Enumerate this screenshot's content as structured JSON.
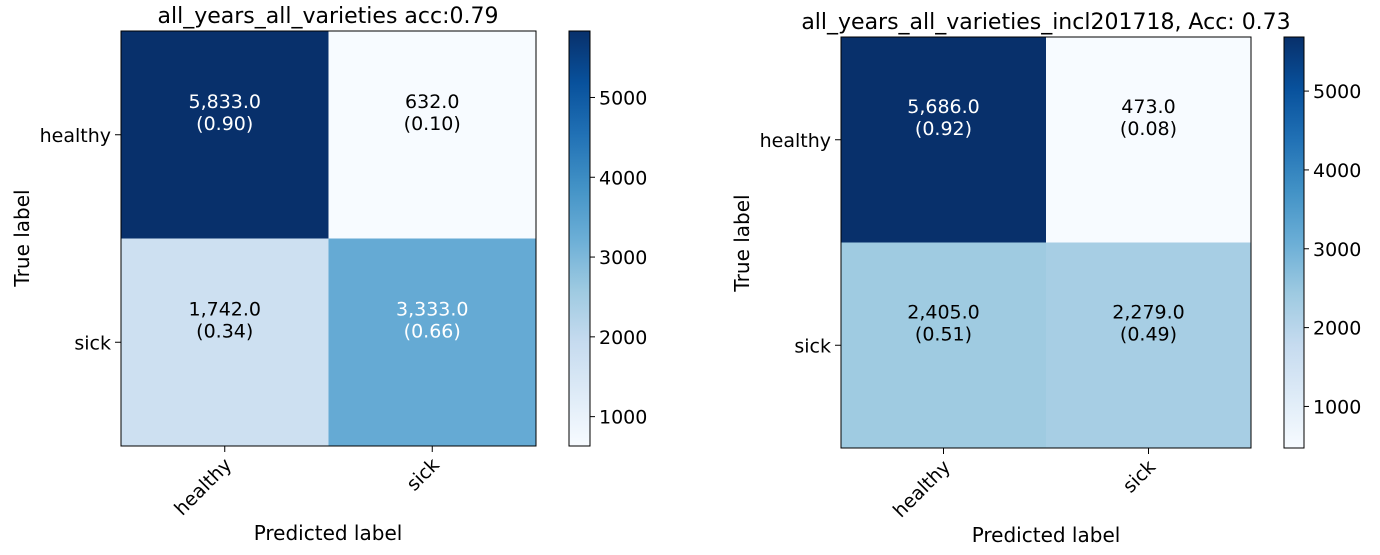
{
  "chart_data": [
    {
      "type": "heatmap",
      "title": "all_years_all_varieties acc:0.79",
      "xlabel": "Predicted label",
      "ylabel": "True label",
      "x_categories": [
        "healthy",
        "sick"
      ],
      "y_categories": [
        "healthy",
        "sick"
      ],
      "matrix": [
        [
          5833,
          632
        ],
        [
          1742,
          3333
        ]
      ],
      "normalized": [
        [
          0.9,
          0.1
        ],
        [
          0.34,
          0.66
        ]
      ],
      "cell_labels": [
        [
          "5,833.0",
          "(0.90)",
          "632.0",
          "(0.10)"
        ],
        [
          "1,742.0",
          "(0.34)",
          "3,333.0",
          "(0.66)"
        ]
      ],
      "colormap": "Blues",
      "colorbar": {
        "range": [
          632,
          5833
        ],
        "ticks": [
          1000,
          2000,
          3000,
          4000,
          5000
        ],
        "tick_labels": [
          "1000",
          "2000",
          "3000",
          "4000",
          "5000"
        ]
      },
      "colors": {
        "text_dark_cell": "#ffffff",
        "text_light_cell": "#000000",
        "frame": "#000000"
      }
    },
    {
      "type": "heatmap",
      "title": "all_years_all_varieties_incl201718, Acc: 0.73",
      "xlabel": "Predicted label",
      "ylabel": "True label",
      "x_categories": [
        "healthy",
        "sick"
      ],
      "y_categories": [
        "healthy",
        "sick"
      ],
      "matrix": [
        [
          5686,
          473
        ],
        [
          2405,
          2279
        ]
      ],
      "normalized": [
        [
          0.92,
          0.08
        ],
        [
          0.51,
          0.49
        ]
      ],
      "cell_labels": [
        [
          "5,686.0",
          "(0.92)",
          "473.0",
          "(0.08)"
        ],
        [
          "2,405.0",
          "(0.51)",
          "2,279.0",
          "(0.49)"
        ]
      ],
      "colormap": "Blues",
      "colorbar": {
        "range": [
          473,
          5686
        ],
        "ticks": [
          1000,
          2000,
          3000,
          4000,
          5000
        ],
        "tick_labels": [
          "1000",
          "2000",
          "3000",
          "4000",
          "5000"
        ]
      },
      "colors": {
        "text_dark_cell": "#ffffff",
        "text_light_cell": "#000000",
        "frame": "#000000"
      }
    }
  ]
}
